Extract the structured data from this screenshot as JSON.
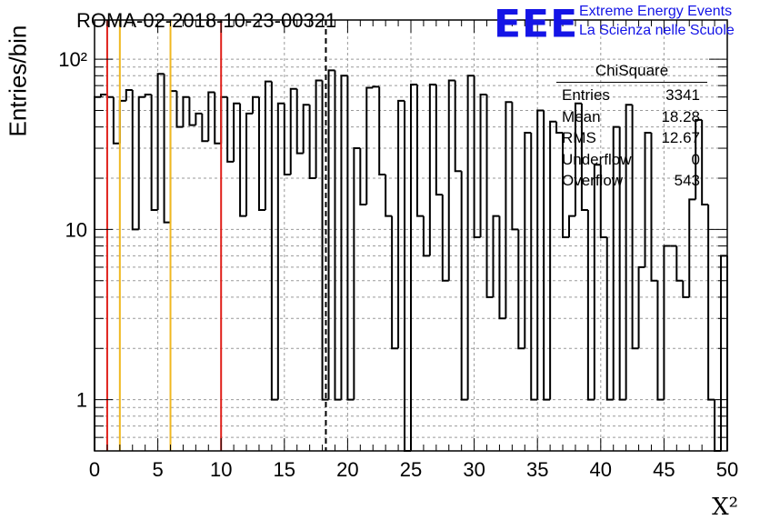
{
  "title": "ROMA-02-2018-10-23-00321",
  "logo": {
    "mark": "EEE",
    "line1": "Extreme Energy Events",
    "line2": "La Scienza nelle Scuole"
  },
  "stats_box": {
    "title": "ChiSquare",
    "rows": [
      {
        "label": "Entries",
        "value": "3341"
      },
      {
        "label": "Mean",
        "value": "18.28"
      },
      {
        "label": "RMS",
        "value": "12.67"
      },
      {
        "label": "Underflow",
        "value": "0"
      },
      {
        "label": "Overflow",
        "value": "543"
      }
    ]
  },
  "colors": {
    "red_line": "#e0201a",
    "yellow_line": "#f0b820",
    "histogram": "#000000",
    "grid": "#9a9a9a"
  },
  "chart_data": {
    "type": "histogram",
    "title": "ROMA-02-2018-10-23-00321",
    "xlabel": "X²",
    "ylabel": "Entries/bin",
    "xlim": [
      0,
      50
    ],
    "ylim": [
      0.5,
      170
    ],
    "yscale": "log",
    "grid": true,
    "bin_width": 0.5,
    "x_ticks": [
      "0",
      "5",
      "10",
      "15",
      "20",
      "25",
      "30",
      "35",
      "40",
      "45",
      "50"
    ],
    "y_ticks": [
      {
        "value": 1,
        "label": "1"
      },
      {
        "value": 10,
        "label": "10"
      },
      {
        "value": 100,
        "label": "10²"
      }
    ],
    "values": [
      60,
      62,
      60,
      32,
      57,
      66,
      10,
      60,
      62,
      13,
      82,
      11,
      65,
      40,
      60,
      41,
      48,
      33,
      64,
      32,
      60,
      25,
      55,
      12,
      48,
      60,
      13,
      74,
      1,
      55,
      21,
      67,
      28,
      54,
      20,
      75,
      1,
      86,
      1,
      80,
      1,
      30,
      14,
      68,
      69,
      21,
      12,
      2,
      57,
      0.4,
      71,
      12,
      7,
      71,
      16,
      5,
      75,
      22,
      1,
      80,
      9,
      62,
      4,
      12,
      3,
      56,
      10,
      2,
      37,
      1,
      50,
      1,
      43,
      37,
      9,
      12,
      55,
      13,
      1,
      24,
      9,
      1,
      40,
      1,
      54,
      2,
      6,
      37,
      5,
      1,
      8,
      8,
      5,
      4,
      15,
      44,
      14,
      1,
      0.4,
      7
    ],
    "vertical_lines": [
      {
        "x": 1,
        "color": "red"
      },
      {
        "x": 2,
        "color": "yellow"
      },
      {
        "x": 6,
        "color": "yellow"
      },
      {
        "x": 10,
        "color": "red"
      },
      {
        "x": 18.28,
        "color": "black",
        "style": "dashed"
      }
    ]
  }
}
